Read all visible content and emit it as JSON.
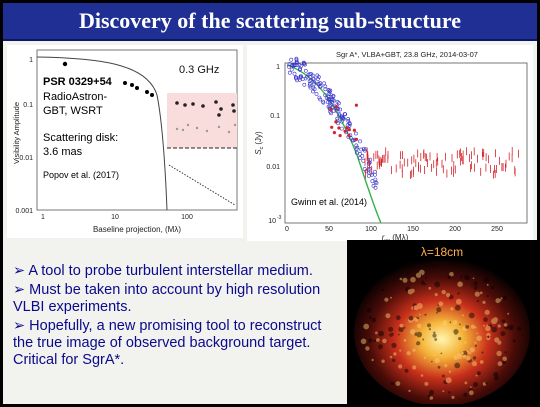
{
  "title": "Discovery of the scattering sub-structure",
  "left_plot": {
    "frequency": "0.3 GHz",
    "pulsar": "PSR 0329+54",
    "instrument_line1": "RadioAstron-",
    "instrument_line2": "GBT, WSRT",
    "disk_line1": "Scattering disk:",
    "disk_line2": "3.6 mas",
    "citation": "Popov et al. (2017)",
    "ylabel": "Visibility Amplitude",
    "xlabel": "Baseline projection, (Mλ)",
    "yticks": [
      "1",
      "0.1",
      "0.01",
      "0.001"
    ],
    "xticks": [
      "1",
      "10",
      "100"
    ]
  },
  "right_plot": {
    "header": "Sgr A*, VLBA+GBT, 23.8 GHz, 2014-03-07",
    "ylabel": "S",
    "ylabel_sub": "c",
    "ylabel_unit": "(Jy)",
    "xlabel": "r",
    "xlabel_sub": "uv",
    "xlabel_unit": "(Mλ)",
    "citation": "Gwinn et al. (2014)",
    "yticks": [
      "1",
      "0.1",
      "0.01",
      "10"
    ],
    "ytick_exp": "-3",
    "xticks": [
      "0",
      "50",
      "100",
      "150",
      "200",
      "250"
    ]
  },
  "bullets": [
    "➢ A tool to probe turbulent interstellar medium.",
    "➢  Must be taken into account by high resolution VLBI experiments.",
    "➢ Hopefully, a new promising tool to reconstruct the true image of observed background target. Critical for SgrA*."
  ],
  "image_label": "λ=18cm",
  "colors": {
    "title_bg": "#1f2f93",
    "bullet_text": "#0a0a8c"
  }
}
